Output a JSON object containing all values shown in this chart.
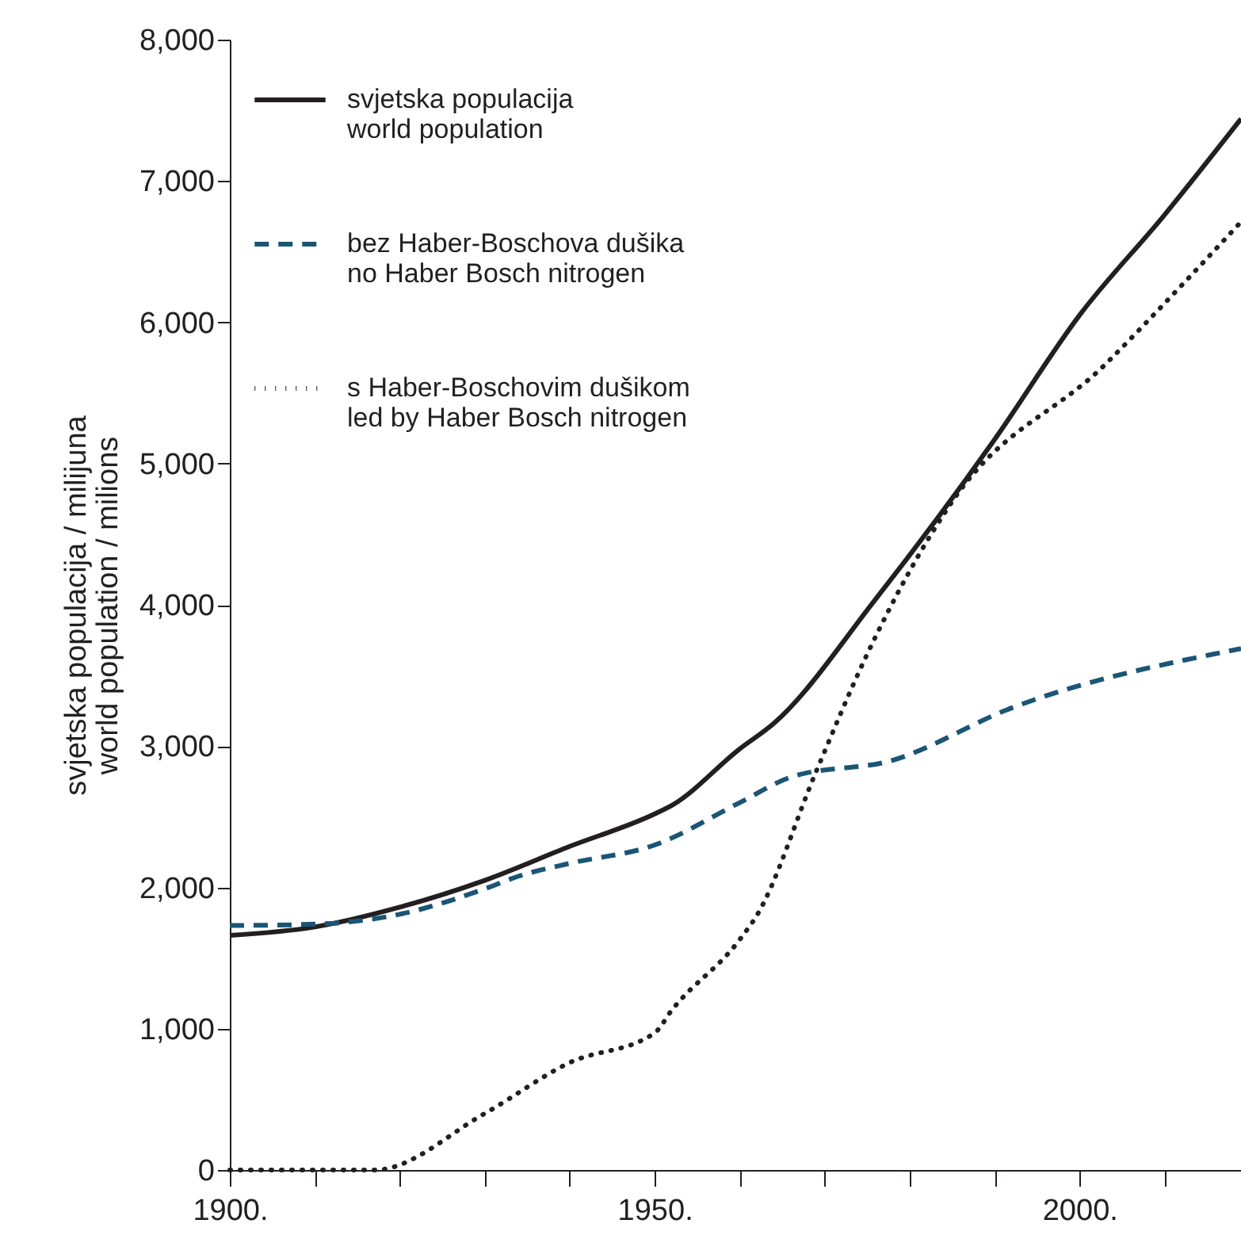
{
  "chart_data": {
    "type": "line",
    "ylabel": "svjetska populacija / milijuna\nworld population / milions",
    "xlim": [
      1900,
      2019
    ],
    "ylim": [
      0,
      8000
    ],
    "xticks": [
      {
        "value": 1900,
        "label": "1900."
      },
      {
        "value": 1910,
        "label": null
      },
      {
        "value": 1920,
        "label": null
      },
      {
        "value": 1930,
        "label": null
      },
      {
        "value": 1940,
        "label": null
      },
      {
        "value": 1950,
        "label": "1950."
      },
      {
        "value": 1960,
        "label": null
      },
      {
        "value": 1970,
        "label": null
      },
      {
        "value": 1980,
        "label": null
      },
      {
        "value": 1990,
        "label": null
      },
      {
        "value": 2000,
        "label": "2000."
      },
      {
        "value": 2010,
        "label": null
      }
    ],
    "yticks": [
      {
        "value": 0,
        "label": "0"
      },
      {
        "value": 1000,
        "label": "1,000"
      },
      {
        "value": 2000,
        "label": "2,000"
      },
      {
        "value": 3000,
        "label": "3,000"
      },
      {
        "value": 4000,
        "label": "4,000"
      },
      {
        "value": 5000,
        "label": "5,000"
      },
      {
        "value": 6000,
        "label": "6,000"
      },
      {
        "value": 7000,
        "label": "7,000"
      },
      {
        "value": 8000,
        "label": "8,000"
      }
    ],
    "grid": false,
    "legend": "top left",
    "series": [
      {
        "name": "svjetska populacija\nworld population",
        "color": "#231f20",
        "line_style": "solid",
        "x": [
          1900,
          1910,
          1920,
          1930,
          1940,
          1950,
          1952,
          1960,
          1964,
          1976,
          1990,
          2000,
          2010,
          2019
        ],
        "values": [
          1660,
          1720,
          1860,
          2050,
          2290,
          2520,
          2580,
          2980,
          3160,
          4040,
          5170,
          6050,
          6760,
          7440
        ]
      },
      {
        "name": "bez Haber-Boschova dušika\nno Haber Bosch nitrogen",
        "color": "#1b5576",
        "line_style": "dashed",
        "x": [
          1900,
          1910,
          1920,
          1930,
          1934,
          1940,
          1950,
          1960,
          1966,
          1978,
          1992,
          2019
        ],
        "values": [
          1730,
          1740,
          1810,
          1990,
          2080,
          2170,
          2300,
          2600,
          2780,
          2900,
          3270,
          3690
        ]
      },
      {
        "name": "s Haber-Boschovim dušikom\nled by Haber Bosch nitrogen",
        "color": "#231f20",
        "line_style": "dotted",
        "x": [
          1900,
          1917,
          1930,
          1940,
          1950,
          1952,
          1960,
          1962,
          1969,
          1975,
          1985,
          2003,
          2012,
          2019
        ],
        "values": [
          0,
          0,
          400,
          760,
          970,
          1130,
          1630,
          1800,
          2820,
          3650,
          4730,
          5700,
          6260,
          6710
        ]
      }
    ]
  }
}
